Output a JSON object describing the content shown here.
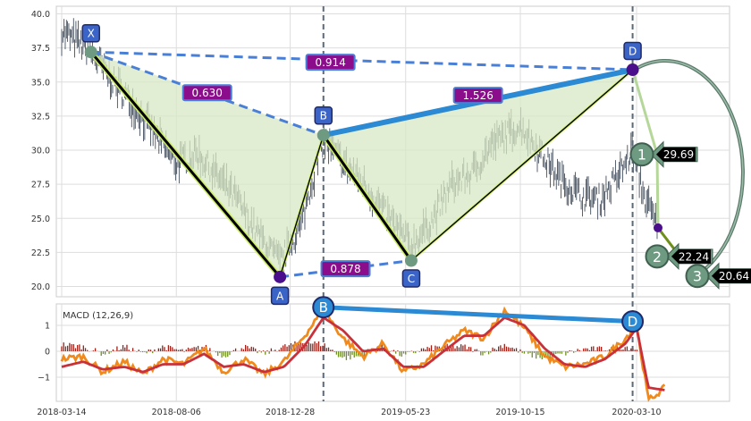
{
  "chart_data": [
    {
      "type": "line",
      "panel": "price",
      "title": "",
      "xlabel": "",
      "ylabel": "",
      "ylim": [
        19.0,
        40.5
      ],
      "y_ticks": [
        "20.0",
        "22.5",
        "25.0",
        "27.5",
        "30.0",
        "32.5",
        "35.0",
        "37.5",
        "40.0"
      ],
      "y_tick_values": [
        20.0,
        22.5,
        25.0,
        27.5,
        30.0,
        32.5,
        35.0,
        37.5,
        40.0
      ],
      "grid": true,
      "colors": {
        "price_bars": "#2f3b4c",
        "leg": "#000000",
        "leg_glow": "#ccee66",
        "fill": "#d8e8c4",
        "dash_ratio": "#4a7fd6",
        "thick_ratio": "#2b8ad3",
        "ratio_label_bg": "#8b0d8b",
        "point_label_bg": "#3a64c8",
        "marker_dark": "#4b0f8c",
        "marker_gray": "#6d9a80",
        "target_circle": "#6d9a80",
        "target_label_bg": "#000000"
      },
      "pattern_points": [
        {
          "label": "X",
          "date": "2018-04-20",
          "value": 37.2
        },
        {
          "label": "A",
          "date": "2018-12-15",
          "value": 20.7
        },
        {
          "label": "B",
          "date": "2019-02-08",
          "value": 31.1
        },
        {
          "label": "C",
          "date": "2019-05-30",
          "value": 21.9
        },
        {
          "label": "D",
          "date": "2020-03-05",
          "value": 35.9
        }
      ],
      "ratios": [
        {
          "text": "0.630",
          "from": "X",
          "to": "B"
        },
        {
          "text": "0.878",
          "from": "A",
          "to": "C"
        },
        {
          "text": "1.526",
          "from": "B",
          "to": "D"
        },
        {
          "text": "0.914",
          "from": "X",
          "to": "D"
        }
      ],
      "targets": [
        {
          "number": "1",
          "value": 29.69,
          "label": "29.69"
        },
        {
          "number": "2",
          "value": 22.24,
          "label": "22.24"
        },
        {
          "number": "3",
          "value": 20.64,
          "label": "20.64"
        }
      ],
      "price_series_approx": {
        "dates": [
          "2018-03-14",
          "2018-04-01",
          "2018-04-20",
          "2018-05-15",
          "2018-06-10",
          "2018-07-05",
          "2018-08-06",
          "2018-09-01",
          "2018-09-25",
          "2018-10-20",
          "2018-11-15",
          "2018-12-15",
          "2019-01-10",
          "2019-02-08",
          "2019-03-05",
          "2019-04-01",
          "2019-04-25",
          "2019-05-30",
          "2019-06-25",
          "2019-07-20",
          "2019-08-15",
          "2019-09-10",
          "2019-10-15",
          "2019-11-10",
          "2019-12-05",
          "2020-01-01",
          "2020-01-25",
          "2020-02-20",
          "2020-03-05",
          "2020-03-20",
          "2020-04-05"
        ],
        "values": [
          38.7,
          38.0,
          37.2,
          35.2,
          33.5,
          31.5,
          29.0,
          29.8,
          28.2,
          26.5,
          24.0,
          21.8,
          24.5,
          30.8,
          29.0,
          27.5,
          25.5,
          23.0,
          24.8,
          27.5,
          28.3,
          30.5,
          31.8,
          29.8,
          27.8,
          26.6,
          26.4,
          28.5,
          30.0,
          26.5,
          24.5
        ]
      }
    },
    {
      "type": "bar",
      "panel": "macd",
      "title": "MACD (12,26,9)",
      "ylim": [
        -2.1,
        1.9
      ],
      "y_ticks": [
        "1",
        "0",
        "−1"
      ],
      "y_tick_values": [
        1,
        0,
        -1
      ],
      "x_ticks": [
        "2018-03-14",
        "2018-08-06",
        "2018-12-28",
        "2019-05-23",
        "2019-10-15",
        "2020-03-10"
      ],
      "grid": true,
      "colors": {
        "macd_line": "#f08a1c",
        "signal_line": "#c8313a",
        "hist_pos": "#a11d14",
        "hist_neg": "#6f8f1c",
        "divergence": "#2b8ad3"
      },
      "divergence_points": [
        {
          "label": "B",
          "date": "2019-02-08",
          "value": 1.7
        },
        {
          "label": "D",
          "date": "2020-03-05",
          "value": 1.15
        }
      ],
      "macd_series_approx": {
        "dates": [
          "2018-03-14",
          "2018-04-10",
          "2018-05-05",
          "2018-06-01",
          "2018-06-25",
          "2018-07-20",
          "2018-08-15",
          "2018-09-10",
          "2018-10-05",
          "2018-10-30",
          "2018-11-25",
          "2018-12-20",
          "2019-01-15",
          "2019-02-08",
          "2019-03-05",
          "2019-03-30",
          "2019-04-25",
          "2019-05-20",
          "2019-06-15",
          "2019-07-10",
          "2019-08-05",
          "2019-08-30",
          "2019-09-25",
          "2019-10-20",
          "2019-11-15",
          "2019-12-10",
          "2020-01-05",
          "2020-01-30",
          "2020-02-25",
          "2020-03-10",
          "2020-03-25",
          "2020-04-15"
        ],
        "macd": [
          -0.3,
          -0.2,
          -0.8,
          -0.4,
          -0.9,
          -0.3,
          -0.5,
          0.1,
          -0.8,
          -0.3,
          -0.9,
          -0.4,
          0.6,
          1.6,
          0.5,
          -0.2,
          0.3,
          -0.8,
          -0.5,
          0.2,
          0.8,
          0.5,
          1.6,
          0.9,
          -0.2,
          -0.6,
          -0.5,
          -0.2,
          0.5,
          1.0,
          -1.9,
          -1.4
        ],
        "signal": [
          -0.6,
          -0.4,
          -0.7,
          -0.6,
          -0.8,
          -0.5,
          -0.5,
          -0.1,
          -0.6,
          -0.5,
          -0.8,
          -0.6,
          0.2,
          1.3,
          0.8,
          0.0,
          0.1,
          -0.6,
          -0.6,
          0.0,
          0.6,
          0.6,
          1.3,
          1.0,
          0.1,
          -0.5,
          -0.6,
          -0.3,
          0.3,
          0.9,
          -1.4,
          -1.5
        ]
      }
    }
  ]
}
